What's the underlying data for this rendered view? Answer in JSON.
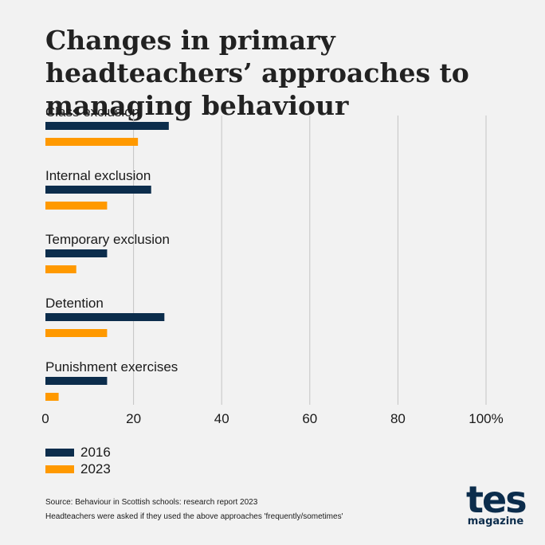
{
  "title": "Changes in primary headteachers’ approaches to managing behaviour",
  "chart_data": {
    "type": "bar",
    "orientation": "horizontal",
    "categories": [
      "Class exclusion",
      "Internal exclusion",
      "Temporary exclusion",
      "Detention",
      "Punishment exercises"
    ],
    "series": [
      {
        "name": "2016",
        "color": "#0c2d4c",
        "values": [
          28,
          24,
          14,
          27,
          14
        ]
      },
      {
        "name": "2023",
        "color": "#ff9900",
        "values": [
          21,
          14,
          7,
          14,
          3
        ]
      }
    ],
    "xlim": [
      0,
      100
    ],
    "xticks": [
      "0",
      "20",
      "40",
      "60",
      "80",
      "100%"
    ],
    "xtick_values": [
      0,
      20,
      40,
      60,
      80,
      100
    ],
    "grid": true,
    "legend_position": "bottom-left"
  },
  "source": {
    "line1": "Source: Behaviour in Scottish schools: research report 2023",
    "line2": "Headteachers were asked if they used the above approaches 'frequently/sometimes'"
  },
  "logo": {
    "word": "tes",
    "sub": "magazine"
  }
}
